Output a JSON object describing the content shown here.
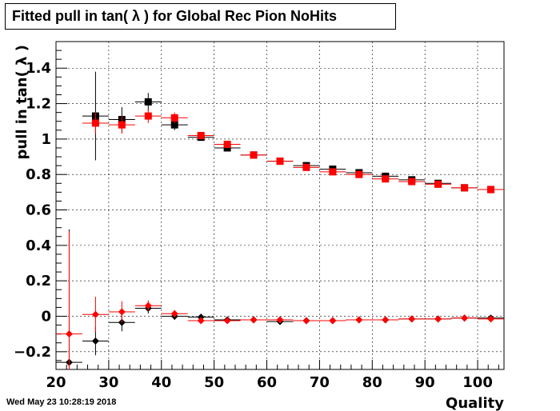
{
  "chart_data": {
    "type": "scatter",
    "title": "Fitted pull in tan( λ ) for Global Rec Pion NoHits",
    "xlabel": "Quality",
    "ylabel": "pull in tan( λ )",
    "xlim": [
      20,
      105
    ],
    "ylim": [
      -0.3,
      1.55
    ],
    "x_ticks": [
      20,
      30,
      40,
      50,
      60,
      70,
      80,
      90,
      100
    ],
    "y_ticks": [
      -0.2,
      0,
      0.2,
      0.4,
      0.6,
      0.8,
      1,
      1.2,
      1.4
    ],
    "x_tick_labels": [
      "20",
      "30",
      "40",
      "50",
      "60",
      "70",
      "80",
      "90",
      "100"
    ],
    "y_tick_labels": [
      "−0.2",
      "0",
      "0.2",
      "0.4",
      "0.6",
      "0.8",
      "1",
      "1.2",
      "1.4"
    ],
    "grid": true,
    "series": [
      {
        "marker": "square",
        "color": "#000000",
        "points": [
          {
            "x": 27.5,
            "y": 1.13,
            "xerr": 2.5,
            "yerr": 0.25
          },
          {
            "x": 32.5,
            "y": 1.11,
            "xerr": 2.5,
            "yerr": 0.07
          },
          {
            "x": 37.5,
            "y": 1.21,
            "xerr": 2.5,
            "yerr": 0.05
          },
          {
            "x": 42.5,
            "y": 1.08,
            "xerr": 2.5,
            "yerr": 0.03
          },
          {
            "x": 47.5,
            "y": 1.01,
            "xerr": 2.5,
            "yerr": 0.01
          },
          {
            "x": 52.5,
            "y": 0.95,
            "xerr": 2.5,
            "yerr": 0.01
          },
          {
            "x": 57.5,
            "y": 0.91,
            "xerr": 2.5,
            "yerr": 0.005
          },
          {
            "x": 62.5,
            "y": 0.875,
            "xerr": 2.5,
            "yerr": 0.005
          },
          {
            "x": 67.5,
            "y": 0.85,
            "xerr": 2.5,
            "yerr": 0.005
          },
          {
            "x": 72.5,
            "y": 0.83,
            "xerr": 2.5,
            "yerr": 0.005
          },
          {
            "x": 77.5,
            "y": 0.81,
            "xerr": 2.5,
            "yerr": 0.005
          },
          {
            "x": 82.5,
            "y": 0.79,
            "xerr": 2.5,
            "yerr": 0.005
          },
          {
            "x": 87.5,
            "y": 0.77,
            "xerr": 2.5,
            "yerr": 0.005
          },
          {
            "x": 92.5,
            "y": 0.75,
            "xerr": 2.5,
            "yerr": 0.005
          },
          {
            "x": 97.5,
            "y": 0.725,
            "xerr": 2.5,
            "yerr": 0.005
          },
          {
            "x": 102.5,
            "y": 0.715,
            "xerr": 2.5,
            "yerr": 0.005
          }
        ]
      },
      {
        "marker": "square",
        "color": "#ff0000",
        "points": [
          {
            "x": 27.5,
            "y": 1.09,
            "xerr": 2.5,
            "yerr": 0.06
          },
          {
            "x": 32.5,
            "y": 1.08,
            "xerr": 2.5,
            "yerr": 0.05
          },
          {
            "x": 37.5,
            "y": 1.13,
            "xerr": 2.5,
            "yerr": 0.04
          },
          {
            "x": 42.5,
            "y": 1.12,
            "xerr": 2.5,
            "yerr": 0.03
          },
          {
            "x": 47.5,
            "y": 1.02,
            "xerr": 2.5,
            "yerr": 0.01
          },
          {
            "x": 52.5,
            "y": 0.97,
            "xerr": 2.5,
            "yerr": 0.01
          },
          {
            "x": 57.5,
            "y": 0.91,
            "xerr": 2.5,
            "yerr": 0.005
          },
          {
            "x": 62.5,
            "y": 0.875,
            "xerr": 2.5,
            "yerr": 0.005
          },
          {
            "x": 67.5,
            "y": 0.84,
            "xerr": 2.5,
            "yerr": 0.005
          },
          {
            "x": 72.5,
            "y": 0.815,
            "xerr": 2.5,
            "yerr": 0.005
          },
          {
            "x": 77.5,
            "y": 0.8,
            "xerr": 2.5,
            "yerr": 0.005
          },
          {
            "x": 82.5,
            "y": 0.775,
            "xerr": 2.5,
            "yerr": 0.005
          },
          {
            "x": 87.5,
            "y": 0.76,
            "xerr": 2.5,
            "yerr": 0.005
          },
          {
            "x": 92.5,
            "y": 0.745,
            "xerr": 2.5,
            "yerr": 0.005
          },
          {
            "x": 97.5,
            "y": 0.725,
            "xerr": 2.5,
            "yerr": 0.005
          },
          {
            "x": 102.5,
            "y": 0.715,
            "xerr": 2.5,
            "yerr": 0.005
          }
        ]
      },
      {
        "marker": "diamond",
        "color": "#000000",
        "points": [
          {
            "x": 22.5,
            "y": -0.26,
            "xerr": 2.5,
            "yerr": 0.75
          },
          {
            "x": 27.5,
            "y": -0.14,
            "xerr": 2.5,
            "yerr": 0.08
          },
          {
            "x": 32.5,
            "y": -0.035,
            "xerr": 2.5,
            "yerr": 0.05
          },
          {
            "x": 37.5,
            "y": 0.045,
            "xerr": 2.5,
            "yerr": 0.03
          },
          {
            "x": 42.5,
            "y": 0.0,
            "xerr": 2.5,
            "yerr": 0.02
          },
          {
            "x": 47.5,
            "y": -0.005,
            "xerr": 2.5,
            "yerr": 0.01
          },
          {
            "x": 52.5,
            "y": -0.02,
            "xerr": 2.5,
            "yerr": 0.005
          },
          {
            "x": 57.5,
            "y": -0.02,
            "xerr": 2.5,
            "yerr": 0.005
          },
          {
            "x": 62.5,
            "y": -0.03,
            "xerr": 2.5,
            "yerr": 0.005
          },
          {
            "x": 67.5,
            "y": -0.025,
            "xerr": 2.5,
            "yerr": 0.005
          },
          {
            "x": 72.5,
            "y": -0.025,
            "xerr": 2.5,
            "yerr": 0.005
          },
          {
            "x": 77.5,
            "y": -0.02,
            "xerr": 2.5,
            "yerr": 0.005
          },
          {
            "x": 82.5,
            "y": -0.02,
            "xerr": 2.5,
            "yerr": 0.005
          },
          {
            "x": 87.5,
            "y": -0.015,
            "xerr": 2.5,
            "yerr": 0.005
          },
          {
            "x": 92.5,
            "y": -0.015,
            "xerr": 2.5,
            "yerr": 0.005
          },
          {
            "x": 97.5,
            "y": -0.01,
            "xerr": 2.5,
            "yerr": 0.005
          },
          {
            "x": 102.5,
            "y": -0.01,
            "xerr": 2.5,
            "yerr": 0.005
          }
        ]
      },
      {
        "marker": "diamond",
        "color": "#ff0000",
        "points": [
          {
            "x": 22.5,
            "y": -0.1,
            "xerr": 2.5,
            "yerr": 0.58
          },
          {
            "x": 27.5,
            "y": 0.01,
            "xerr": 2.5,
            "yerr": 0.1
          },
          {
            "x": 32.5,
            "y": 0.025,
            "xerr": 2.5,
            "yerr": 0.06
          },
          {
            "x": 37.5,
            "y": 0.06,
            "xerr": 2.5,
            "yerr": 0.03
          },
          {
            "x": 42.5,
            "y": 0.015,
            "xerr": 2.5,
            "yerr": 0.02
          },
          {
            "x": 47.5,
            "y": -0.025,
            "xerr": 2.5,
            "yerr": 0.01
          },
          {
            "x": 52.5,
            "y": -0.025,
            "xerr": 2.5,
            "yerr": 0.005
          },
          {
            "x": 57.5,
            "y": -0.02,
            "xerr": 2.5,
            "yerr": 0.005
          },
          {
            "x": 62.5,
            "y": -0.02,
            "xerr": 2.5,
            "yerr": 0.005
          },
          {
            "x": 67.5,
            "y": -0.025,
            "xerr": 2.5,
            "yerr": 0.005
          },
          {
            "x": 72.5,
            "y": -0.025,
            "xerr": 2.5,
            "yerr": 0.005
          },
          {
            "x": 77.5,
            "y": -0.02,
            "xerr": 2.5,
            "yerr": 0.005
          },
          {
            "x": 82.5,
            "y": -0.02,
            "xerr": 2.5,
            "yerr": 0.005
          },
          {
            "x": 87.5,
            "y": -0.015,
            "xerr": 2.5,
            "yerr": 0.005
          },
          {
            "x": 92.5,
            "y": -0.015,
            "xerr": 2.5,
            "yerr": 0.005
          },
          {
            "x": 97.5,
            "y": -0.01,
            "xerr": 2.5,
            "yerr": 0.005
          },
          {
            "x": 102.5,
            "y": -0.015,
            "xerr": 2.5,
            "yerr": 0.005
          }
        ]
      }
    ]
  },
  "footer": {
    "timestamp": "Wed May 23 10:28:19 2018"
  }
}
